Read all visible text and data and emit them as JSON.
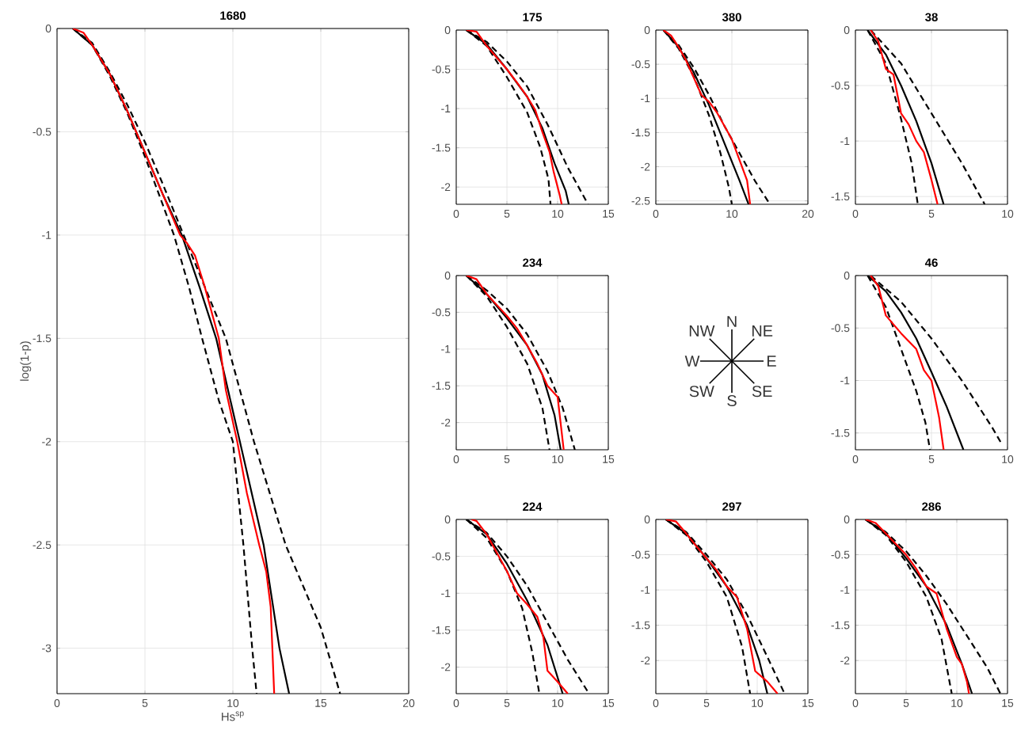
{
  "chart_data": [
    {
      "type": "line",
      "title": "1680",
      "xlabel": "Hs$^{sp}$",
      "ylabel": "log(1-p)",
      "xlim": [
        0,
        20
      ],
      "ylim": [
        -3.22,
        0
      ],
      "xticks": [
        0,
        5,
        10,
        15,
        20
      ],
      "yticks": [
        -3,
        -2.5,
        -2,
        -1.5,
        -1,
        -0.5,
        0
      ],
      "grid": true,
      "series": [
        {
          "color": "#000000",
          "line_style": "dashed",
          "x": [
            0.9,
            2,
            3,
            4,
            5,
            6,
            6.65,
            7.5,
            8.25,
            9.2,
            10,
            10.6,
            11.1,
            11.35
          ],
          "values": [
            0,
            -0.08,
            -0.23,
            -0.41,
            -0.62,
            -0.85,
            -1,
            -1.25,
            -1.5,
            -1.8,
            -2,
            -2.5,
            -3,
            -3.22
          ]
        },
        {
          "color": "#000000",
          "line_style": "dashed",
          "x": [
            0.9,
            2,
            3,
            4,
            5,
            6,
            7.2,
            8.4,
            9.6,
            11.2,
            13,
            15,
            16.1
          ],
          "values": [
            0,
            -0.07,
            -0.21,
            -0.37,
            -0.55,
            -0.75,
            -1,
            -1.25,
            -1.5,
            -2,
            -2.5,
            -2.9,
            -3.22
          ]
        },
        {
          "color": "#000000",
          "line_style": "solid",
          "x": [
            0.9,
            2,
            3,
            4,
            5,
            6,
            7.1,
            8.1,
            9.05,
            10.4,
            11.75,
            12.65,
            13.2
          ],
          "values": [
            0,
            -0.08,
            -0.22,
            -0.4,
            -0.6,
            -0.8,
            -1,
            -1.25,
            -1.5,
            -2,
            -2.5,
            -3,
            -3.22
          ]
        },
        {
          "color": "#ff0000",
          "line_style": "solid",
          "x": [
            0.9,
            1.5,
            2,
            3,
            4,
            5,
            6,
            7,
            7.4,
            7.85,
            8.4,
            9.2,
            9.6,
            10.25,
            10.8,
            11.5,
            11.9,
            12.15,
            12.35
          ],
          "values": [
            0,
            -0.02,
            -0.08,
            -0.22,
            -0.4,
            -0.6,
            -0.8,
            -1,
            -1.04,
            -1.1,
            -1.25,
            -1.5,
            -1.75,
            -2,
            -2.25,
            -2.5,
            -2.63,
            -2.8,
            -3.22
          ]
        }
      ]
    },
    {
      "type": "line",
      "title": "175",
      "xlim": [
        0,
        15
      ],
      "ylim": [
        -2.22,
        0
      ],
      "xticks": [
        0,
        5,
        10,
        15
      ],
      "yticks": [
        -2,
        -1.5,
        -1,
        -0.5,
        0
      ],
      "grid": true,
      "series": [
        {
          "color": "#000000",
          "line_style": "dashed",
          "x": [
            1,
            3,
            5,
            7,
            8.3,
            9.1,
            9.3
          ],
          "values": [
            0,
            -0.2,
            -0.6,
            -1.05,
            -1.5,
            -1.9,
            -2.22
          ]
        },
        {
          "color": "#000000",
          "line_style": "dashed",
          "x": [
            1,
            3,
            5,
            7,
            9,
            11,
            13
          ],
          "values": [
            0,
            -0.15,
            -0.4,
            -0.72,
            -1.2,
            -1.75,
            -2.22
          ]
        },
        {
          "color": "#000000",
          "line_style": "solid",
          "x": [
            1,
            3,
            5,
            7,
            8.5,
            9.7,
            10.8,
            11.1
          ],
          "values": [
            0,
            -0.18,
            -0.5,
            -0.85,
            -1.25,
            -1.7,
            -2.05,
            -2.22
          ]
        },
        {
          "color": "#ff0000",
          "line_style": "solid",
          "x": [
            1,
            2,
            3,
            4,
            5,
            6,
            7,
            7.8,
            8.5,
            9.2,
            9.6,
            10.2,
            10.4
          ],
          "values": [
            0,
            -0.02,
            -0.2,
            -0.35,
            -0.5,
            -0.67,
            -0.85,
            -1.02,
            -1.3,
            -1.55,
            -1.8,
            -2.1,
            -2.22
          ]
        }
      ]
    },
    {
      "type": "line",
      "title": "380",
      "xlim": [
        0,
        20
      ],
      "ylim": [
        -2.55,
        0
      ],
      "xticks": [
        0,
        10,
        20
      ],
      "yticks": [
        -2.5,
        -2,
        -1.5,
        -1,
        -0.5,
        0
      ],
      "grid": true,
      "series": [
        {
          "color": "#000000",
          "line_style": "dashed",
          "x": [
            1,
            3,
            5,
            7,
            8.5,
            9.6,
            10
          ],
          "values": [
            0,
            -0.27,
            -0.68,
            -1.25,
            -1.8,
            -2.3,
            -2.55
          ]
        },
        {
          "color": "#000000",
          "line_style": "dashed",
          "x": [
            1,
            3,
            5,
            7,
            9,
            11,
            13,
            15
          ],
          "values": [
            0,
            -0.22,
            -0.55,
            -0.95,
            -1.4,
            -1.8,
            -2.2,
            -2.55
          ]
        },
        {
          "color": "#000000",
          "line_style": "solid",
          "x": [
            1,
            3,
            5,
            7,
            9,
            11,
            12.2
          ],
          "values": [
            0,
            -0.25,
            -0.62,
            -1.1,
            -1.65,
            -2.2,
            -2.55
          ]
        },
        {
          "color": "#ff0000",
          "line_style": "solid",
          "x": [
            1,
            2,
            3,
            4,
            5,
            6,
            7,
            8,
            9,
            10,
            11,
            12,
            12.4
          ],
          "values": [
            0,
            -0.08,
            -0.25,
            -0.45,
            -0.7,
            -0.95,
            -1.05,
            -1.2,
            -1.4,
            -1.6,
            -1.9,
            -2.2,
            -2.55
          ]
        }
      ]
    },
    {
      "type": "line",
      "title": "38",
      "xlim": [
        0,
        10
      ],
      "ylim": [
        -1.57,
        0
      ],
      "xticks": [
        0,
        5,
        10
      ],
      "yticks": [
        -1.5,
        -1,
        -0.5,
        0
      ],
      "grid": true,
      "series": [
        {
          "color": "#000000",
          "line_style": "dashed",
          "x": [
            0.8,
            2,
            3,
            3.7,
            4.1
          ],
          "values": [
            0,
            -0.3,
            -0.8,
            -1.2,
            -1.57
          ]
        },
        {
          "color": "#000000",
          "line_style": "dashed",
          "x": [
            1,
            3,
            5,
            7,
            8.5
          ],
          "values": [
            0,
            -0.3,
            -0.75,
            -1.2,
            -1.57
          ]
        },
        {
          "color": "#000000",
          "line_style": "solid",
          "x": [
            0.8,
            2,
            3,
            4,
            5,
            5.8
          ],
          "values": [
            0,
            -0.22,
            -0.5,
            -0.82,
            -1.2,
            -1.57
          ]
        },
        {
          "color": "#ff0000",
          "line_style": "solid",
          "x": [
            1,
            1.5,
            2,
            2.5,
            3,
            3.5,
            4,
            4.5,
            5,
            5.4
          ],
          "values": [
            0,
            -0.1,
            -0.35,
            -0.4,
            -0.75,
            -0.85,
            -1,
            -1.1,
            -1.35,
            -1.57
          ]
        }
      ]
    },
    {
      "type": "line",
      "title": "234",
      "xlim": [
        0,
        15
      ],
      "ylim": [
        -2.37,
        0
      ],
      "xticks": [
        0,
        5,
        10,
        15
      ],
      "yticks": [
        -2,
        -1.5,
        -1,
        -0.5,
        0
      ],
      "grid": true,
      "series": [
        {
          "color": "#000000",
          "line_style": "dashed",
          "x": [
            1,
            3,
            5,
            7,
            8.5,
            9.2
          ],
          "values": [
            0,
            -0.28,
            -0.7,
            -1.2,
            -1.8,
            -2.37
          ]
        },
        {
          "color": "#000000",
          "line_style": "dashed",
          "x": [
            1,
            3,
            5,
            7,
            9,
            10.5,
            11.7
          ],
          "values": [
            0,
            -0.2,
            -0.45,
            -0.8,
            -1.3,
            -1.8,
            -2.37
          ]
        },
        {
          "color": "#000000",
          "line_style": "solid",
          "x": [
            1,
            3,
            5,
            7,
            8.5,
            9.7,
            10.3
          ],
          "values": [
            0,
            -0.25,
            -0.58,
            -0.95,
            -1.35,
            -1.9,
            -2.37
          ]
        },
        {
          "color": "#ff0000",
          "line_style": "solid",
          "x": [
            1,
            2,
            3,
            4,
            5,
            6,
            7,
            8,
            9,
            10,
            10.6
          ],
          "values": [
            0,
            -0.05,
            -0.25,
            -0.4,
            -0.55,
            -0.72,
            -0.95,
            -1.2,
            -1.5,
            -1.65,
            -2.37
          ]
        }
      ]
    },
    {
      "type": "line",
      "title": "46",
      "xlim": [
        0,
        10
      ],
      "ylim": [
        -1.66,
        0
      ],
      "xticks": [
        0,
        5,
        10
      ],
      "yticks": [
        -1.5,
        -1,
        -0.5,
        0
      ],
      "grid": true,
      "series": [
        {
          "color": "#000000",
          "line_style": "dashed",
          "x": [
            0.8,
            2,
            3,
            4,
            4.6,
            4.9
          ],
          "values": [
            0,
            -0.3,
            -0.7,
            -1.1,
            -1.4,
            -1.66
          ]
        },
        {
          "color": "#000000",
          "line_style": "dashed",
          "x": [
            1,
            3,
            5,
            7,
            9,
            9.6
          ],
          "values": [
            0,
            -0.25,
            -0.6,
            -1,
            -1.45,
            -1.6
          ]
        },
        {
          "color": "#000000",
          "line_style": "solid",
          "x": [
            0.8,
            2,
            3,
            4,
            5,
            6,
            7.1
          ],
          "values": [
            0,
            -0.15,
            -0.35,
            -0.6,
            -0.92,
            -1.25,
            -1.66
          ]
        },
        {
          "color": "#ff0000",
          "line_style": "solid",
          "x": [
            1,
            1.5,
            2,
            3,
            4,
            4.5,
            5,
            5.5,
            5.8
          ],
          "values": [
            0,
            -0.1,
            -0.38,
            -0.55,
            -0.7,
            -0.9,
            -1,
            -1.35,
            -1.66
          ]
        }
      ]
    },
    {
      "type": "line",
      "title": "224",
      "xlim": [
        0,
        15
      ],
      "ylim": [
        -2.36,
        0
      ],
      "xticks": [
        0,
        5,
        10,
        15
      ],
      "yticks": [
        -2,
        -1.5,
        -1,
        -0.5,
        0
      ],
      "grid": true,
      "series": [
        {
          "color": "#000000",
          "line_style": "dashed",
          "x": [
            1,
            3,
            5,
            6.5,
            7.5,
            8.2
          ],
          "values": [
            0,
            -0.25,
            -0.7,
            -1.2,
            -1.8,
            -2.36
          ]
        },
        {
          "color": "#000000",
          "line_style": "dashed",
          "x": [
            1,
            3,
            5,
            7,
            9,
            11,
            13.1
          ],
          "values": [
            0,
            -0.18,
            -0.5,
            -0.9,
            -1.4,
            -1.9,
            -2.36
          ]
        },
        {
          "color": "#000000",
          "line_style": "solid",
          "x": [
            1,
            3,
            5,
            7,
            9,
            10.5
          ],
          "values": [
            0,
            -0.2,
            -0.6,
            -1.1,
            -1.7,
            -2.36
          ]
        },
        {
          "color": "#ff0000",
          "line_style": "solid",
          "x": [
            1.5,
            2,
            3,
            4,
            5,
            6,
            7,
            8,
            8.6,
            9,
            10,
            11
          ],
          "values": [
            0,
            -0.02,
            -0.2,
            -0.45,
            -0.7,
            -1,
            -1.15,
            -1.32,
            -1.6,
            -2.05,
            -2.2,
            -2.36
          ]
        }
      ]
    },
    {
      "type": "line",
      "title": "297",
      "xlim": [
        0,
        15
      ],
      "ylim": [
        -2.47,
        0
      ],
      "xticks": [
        0,
        5,
        10,
        15
      ],
      "yticks": [
        -2,
        -1.5,
        -1,
        -0.5,
        0
      ],
      "grid": true,
      "series": [
        {
          "color": "#000000",
          "line_style": "dashed",
          "x": [
            1,
            3,
            5,
            7,
            8.5,
            9.3
          ],
          "values": [
            0,
            -0.22,
            -0.6,
            -1.1,
            -1.8,
            -2.47
          ]
        },
        {
          "color": "#000000",
          "line_style": "dashed",
          "x": [
            1,
            3,
            5,
            7,
            9,
            11,
            12.7
          ],
          "values": [
            0,
            -0.18,
            -0.5,
            -0.85,
            -1.35,
            -1.95,
            -2.47
          ]
        },
        {
          "color": "#000000",
          "line_style": "solid",
          "x": [
            1,
            3,
            5,
            7,
            9,
            10.2,
            11
          ],
          "values": [
            0,
            -0.2,
            -0.55,
            -0.95,
            -1.5,
            -2,
            -2.47
          ]
        },
        {
          "color": "#ff0000",
          "line_style": "solid",
          "x": [
            1,
            2,
            3,
            4,
            5,
            6,
            7,
            8,
            9,
            9.8,
            11,
            12
          ],
          "values": [
            0,
            -0.03,
            -0.2,
            -0.38,
            -0.55,
            -0.72,
            -0.95,
            -1.1,
            -1.55,
            -2.15,
            -2.3,
            -2.47
          ]
        }
      ]
    },
    {
      "type": "line",
      "title": "286",
      "xlim": [
        0,
        15
      ],
      "ylim": [
        -2.47,
        0
      ],
      "xticks": [
        0,
        5,
        10,
        15
      ],
      "yticks": [
        -2,
        -1.5,
        -1,
        -0.5,
        0
      ],
      "grid": true,
      "series": [
        {
          "color": "#000000",
          "line_style": "dashed",
          "x": [
            1,
            3,
            5,
            7,
            8.5,
            9.5
          ],
          "values": [
            0,
            -0.22,
            -0.6,
            -1.1,
            -1.7,
            -2.47
          ]
        },
        {
          "color": "#000000",
          "line_style": "dashed",
          "x": [
            1,
            3,
            5,
            7,
            9,
            11,
            13,
            14.3
          ],
          "values": [
            0,
            -0.18,
            -0.45,
            -0.8,
            -1.2,
            -1.65,
            -2.1,
            -2.47
          ]
        },
        {
          "color": "#000000",
          "line_style": "solid",
          "x": [
            1,
            3,
            5,
            7,
            9,
            10.5,
            11.5
          ],
          "values": [
            0,
            -0.2,
            -0.55,
            -0.95,
            -1.5,
            -2.05,
            -2.47
          ]
        },
        {
          "color": "#ff0000",
          "line_style": "solid",
          "x": [
            1,
            2,
            3,
            4,
            5,
            6,
            7,
            8,
            8.5,
            9,
            10,
            10.5,
            11,
            11.2
          ],
          "values": [
            0,
            -0.05,
            -0.2,
            -0.35,
            -0.5,
            -0.7,
            -0.95,
            -1.05,
            -1.3,
            -1.55,
            -1.95,
            -2.05,
            -2.3,
            -2.47
          ]
        }
      ]
    },
    {
      "type": "other",
      "annotations": [
        "N",
        "NE",
        "E",
        "SE",
        "S",
        "SW",
        "W",
        "NW"
      ]
    }
  ]
}
